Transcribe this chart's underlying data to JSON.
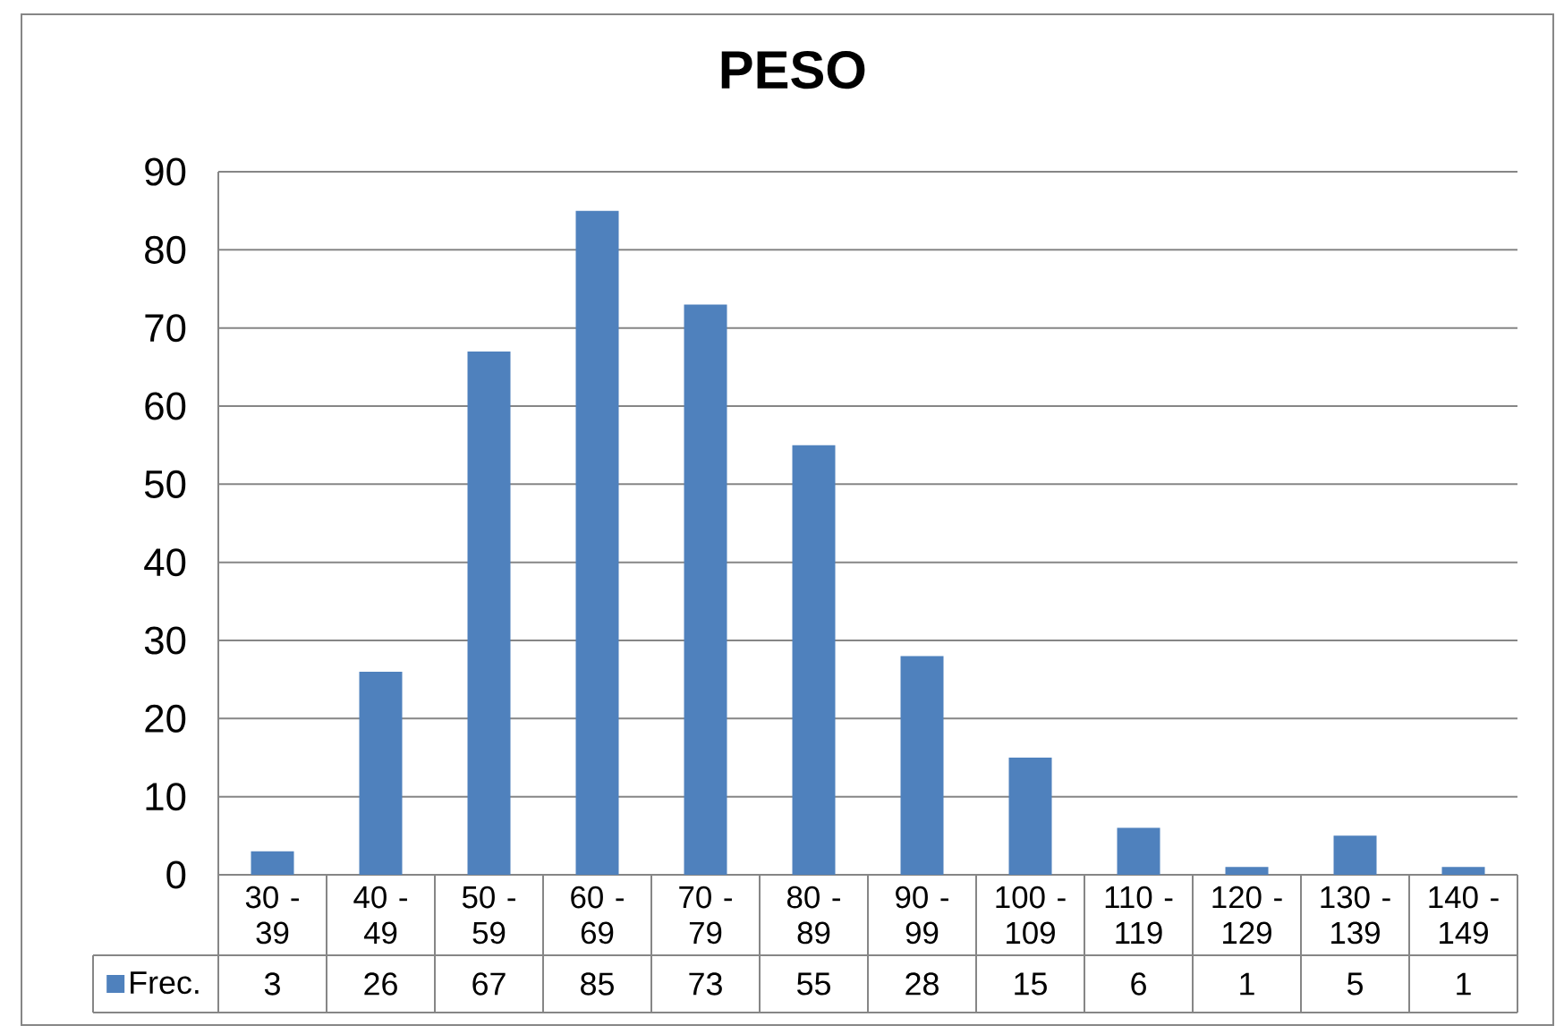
{
  "chart_data": {
    "type": "bar",
    "title": "PESO",
    "categories": [
      "30 - 39",
      "40 - 49",
      "50 - 59",
      "60 - 69",
      "70 - 79",
      "80 - 89",
      "90 - 99",
      "100 - 109",
      "110 - 119",
      "120 - 129",
      "130 - 139",
      "140 - 149"
    ],
    "series": [
      {
        "name": "Frec.",
        "color": "#4f81bd",
        "values": [
          3,
          26,
          67,
          85,
          73,
          55,
          28,
          15,
          6,
          1,
          5,
          1
        ]
      }
    ],
    "ylim": [
      0,
      90
    ],
    "yticks": [
      0,
      10,
      20,
      30,
      40,
      50,
      60,
      70,
      80,
      90
    ],
    "grid": "y",
    "legend": "bottom left",
    "data_labels": true
  }
}
